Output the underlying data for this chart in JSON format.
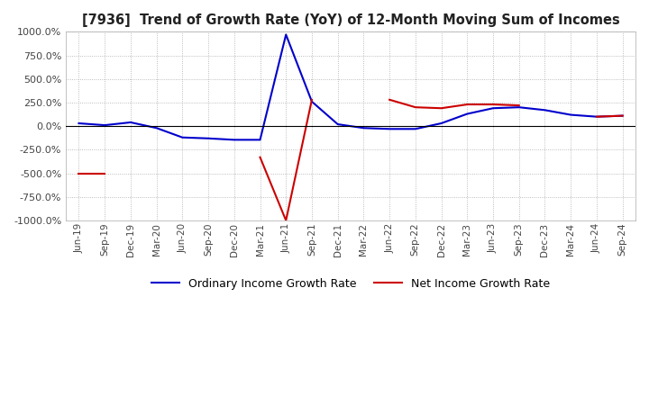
{
  "title": "[7936]  Trend of Growth Rate (YoY) of 12-Month Moving Sum of Incomes",
  "ylim": [
    -1000,
    1000
  ],
  "yticks": [
    -1000,
    -750,
    -500,
    -250,
    0,
    250,
    500,
    750,
    1000
  ],
  "background_color": "#ffffff",
  "grid_color": "#aaaaaa",
  "ordinary_color": "#0000cc",
  "net_color": "#cc0000",
  "legend_ordinary": "Ordinary Income Growth Rate",
  "legend_net": "Net Income Growth Rate",
  "dates": [
    "Jun-19",
    "Sep-19",
    "Dec-19",
    "Mar-20",
    "Jun-20",
    "Sep-20",
    "Dec-20",
    "Mar-21",
    "Jun-21",
    "Sep-21",
    "Dec-21",
    "Mar-22",
    "Jun-22",
    "Sep-22",
    "Dec-22",
    "Mar-23",
    "Jun-23",
    "Sep-23",
    "Dec-23",
    "Mar-24",
    "Jun-24",
    "Sep-24"
  ],
  "ordinary_income": [
    30,
    10,
    40,
    -20,
    -120,
    -130,
    -145,
    -145,
    970,
    260,
    20,
    -20,
    -30,
    -30,
    30,
    130,
    190,
    200,
    170,
    120,
    100,
    110
  ],
  "net_income": [
    -500,
    -500,
    null,
    null,
    null,
    null,
    null,
    -330,
    -1000,
    280,
    null,
    null,
    280,
    200,
    190,
    230,
    230,
    220,
    null,
    null,
    100,
    110
  ]
}
